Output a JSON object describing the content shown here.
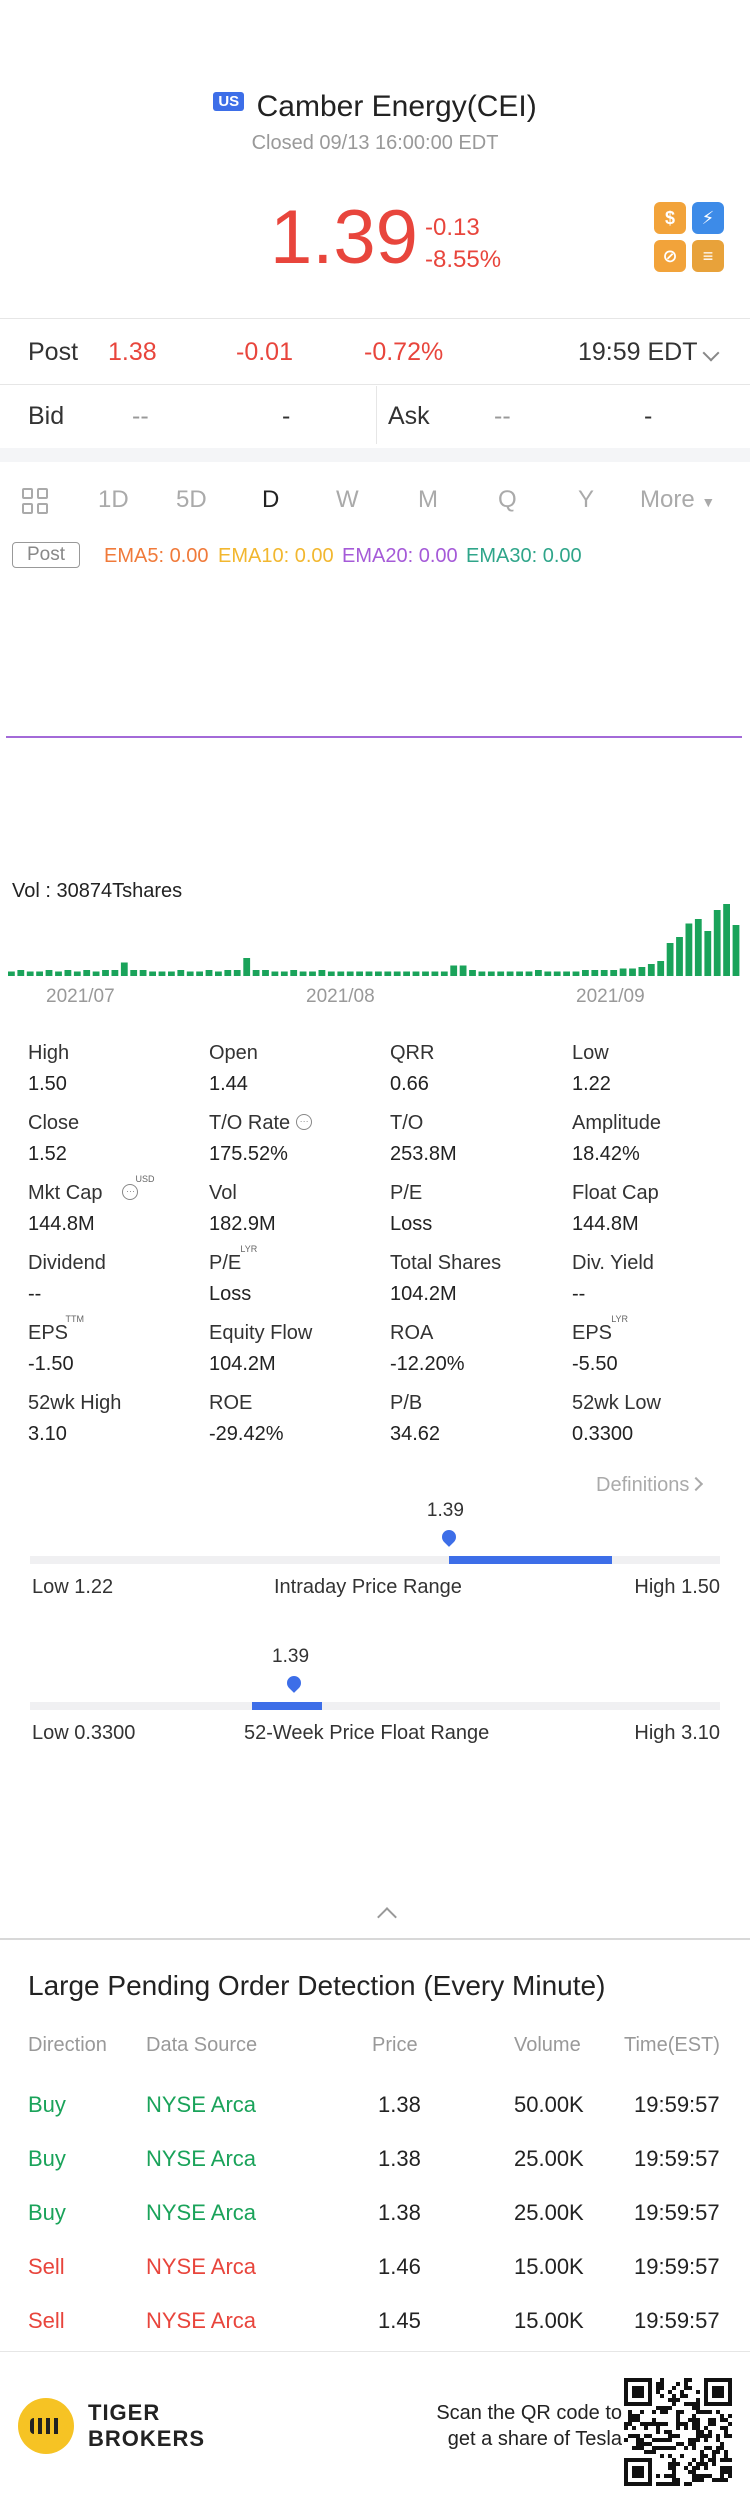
{
  "header": {
    "market": "US",
    "name": "Camber Energy(CEI)",
    "status": "Closed 09/13 16:00:00 EDT",
    "price": "1.39",
    "change": "-0.13",
    "change_pct": "-8.55%",
    "badges": [
      {
        "icon": "dollar-icon",
        "glyph": "$",
        "color": "#f2a33a"
      },
      {
        "icon": "flash-icon",
        "glyph": "⚡",
        "color": "#3d8be8"
      },
      {
        "icon": "no-short-icon",
        "glyph": "⊘",
        "color": "#f2a33a"
      },
      {
        "icon": "stack-icon",
        "glyph": "≡",
        "color": "#e8a23a"
      }
    ]
  },
  "post": {
    "label": "Post",
    "price": "1.38",
    "change": "-0.01",
    "change_pct": "-0.72%",
    "time": "19:59 EDT"
  },
  "quote": {
    "bid_label": "Bid",
    "bid_price": "--",
    "bid_size": "-",
    "ask_label": "Ask",
    "ask_price": "--",
    "ask_size": "-"
  },
  "periods": [
    "1D",
    "5D",
    "D",
    "W",
    "M",
    "Q",
    "Y",
    "More"
  ],
  "active_period": "D",
  "ema": {
    "tag": "Post",
    "items": [
      {
        "label": "EMA5: 0.00",
        "color": "#f07a3a"
      },
      {
        "label": "EMA10: 0.00",
        "color": "#f2b72f"
      },
      {
        "label": "EMA20: 0.00",
        "color": "#a55ad8"
      },
      {
        "label": "EMA30: 0.00",
        "color": "#2fa58a"
      }
    ]
  },
  "volume": {
    "label": "Vol  : 30874Tshares",
    "dates": [
      "2021/07",
      "2021/08",
      "2021/09"
    ],
    "bars": [
      3,
      4,
      3,
      3,
      4,
      3,
      4,
      3,
      4,
      3,
      4,
      4,
      9,
      4,
      4,
      3,
      3,
      3,
      4,
      3,
      3,
      4,
      3,
      4,
      4,
      12,
      4,
      4,
      3,
      3,
      4,
      3,
      3,
      4,
      3,
      3,
      3,
      3,
      3,
      3,
      3,
      3,
      3,
      3,
      3,
      3,
      3,
      7,
      7,
      4,
      3,
      3,
      3,
      3,
      3,
      3,
      4,
      3,
      3,
      3,
      3,
      4,
      4,
      4,
      4,
      5,
      5,
      6,
      8,
      10,
      22,
      26,
      35,
      38,
      30,
      44,
      48,
      34
    ],
    "bar_color": "#1aa35a"
  },
  "stats": [
    {
      "k": "High",
      "v": "1.50"
    },
    {
      "k": "Open",
      "v": "1.44"
    },
    {
      "k": "QRR",
      "v": "0.66"
    },
    {
      "k": "Low",
      "v": "1.22"
    },
    {
      "k": "Close",
      "v": "1.52"
    },
    {
      "k": "T/O Rate",
      "v": "175.52%",
      "info": true
    },
    {
      "k": "T/O",
      "v": "253.8M"
    },
    {
      "k": "Amplitude",
      "v": "18.42%"
    },
    {
      "k": "Mkt Cap",
      "v": "144.8M",
      "sup": "USD",
      "info": true
    },
    {
      "k": "Vol",
      "v": "182.9M"
    },
    {
      "k": "P/E",
      "v": "Loss"
    },
    {
      "k": "Float Cap",
      "v": "144.8M"
    },
    {
      "k": "Dividend",
      "v": "--"
    },
    {
      "k": "P/E",
      "v": "Loss",
      "sup": "LYR"
    },
    {
      "k": "Total Shares",
      "v": "104.2M"
    },
    {
      "k": "Div. Yield",
      "v": "--"
    },
    {
      "k": "EPS",
      "v": "-1.50",
      "sup": "TTM"
    },
    {
      "k": "Equity Flow",
      "v": "104.2M"
    },
    {
      "k": "ROA",
      "v": "-12.20%"
    },
    {
      "k": "EPS",
      "v": "-5.50",
      "sup": "LYR"
    },
    {
      "k": "52wk High",
      "v": "3.10"
    },
    {
      "k": "ROE",
      "v": "-29.42%"
    },
    {
      "k": "P/B",
      "v": "34.62"
    },
    {
      "k": "52wk Low",
      "v": "0.3300"
    }
  ],
  "definitions_label": "Definitions",
  "intraday_range": {
    "title": "Intraday Price Range",
    "low_label": "Low 1.22",
    "high_label": "High 1.50",
    "low": 1.22,
    "high": 1.5,
    "current": 1.39,
    "current_label": "1.39"
  },
  "week52_range": {
    "title": "52-Week Price Float Range",
    "low_label": "Low 0.3300",
    "high_label": "High 3.10",
    "low": 0.33,
    "high": 3.1,
    "current": 1.39,
    "current_label": "1.39"
  },
  "pending": {
    "title": "Large Pending Order Detection (Every Minute)",
    "headers": [
      "Direction",
      "Data Source",
      "Price",
      "Volume",
      "Time(EST)"
    ],
    "rows": [
      {
        "direction": "Buy",
        "source": "NYSE Arca",
        "price": "1.38",
        "volume": "50.00K",
        "time": "19:59:57"
      },
      {
        "direction": "Buy",
        "source": "NYSE Arca",
        "price": "1.38",
        "volume": "25.00K",
        "time": "19:59:57"
      },
      {
        "direction": "Buy",
        "source": "NYSE Arca",
        "price": "1.38",
        "volume": "25.00K",
        "time": "19:59:57"
      },
      {
        "direction": "Sell",
        "source": "NYSE Arca",
        "price": "1.46",
        "volume": "15.00K",
        "time": "19:59:57"
      },
      {
        "direction": "Sell",
        "source": "NYSE Arca",
        "price": "1.45",
        "volume": "15.00K",
        "time": "19:59:57"
      }
    ]
  },
  "footer": {
    "brand_line1": "TIGER",
    "brand_line2": "BROKERS",
    "scan_line1": "Scan the QR code to",
    "scan_line2": "get a share of Tesla"
  }
}
